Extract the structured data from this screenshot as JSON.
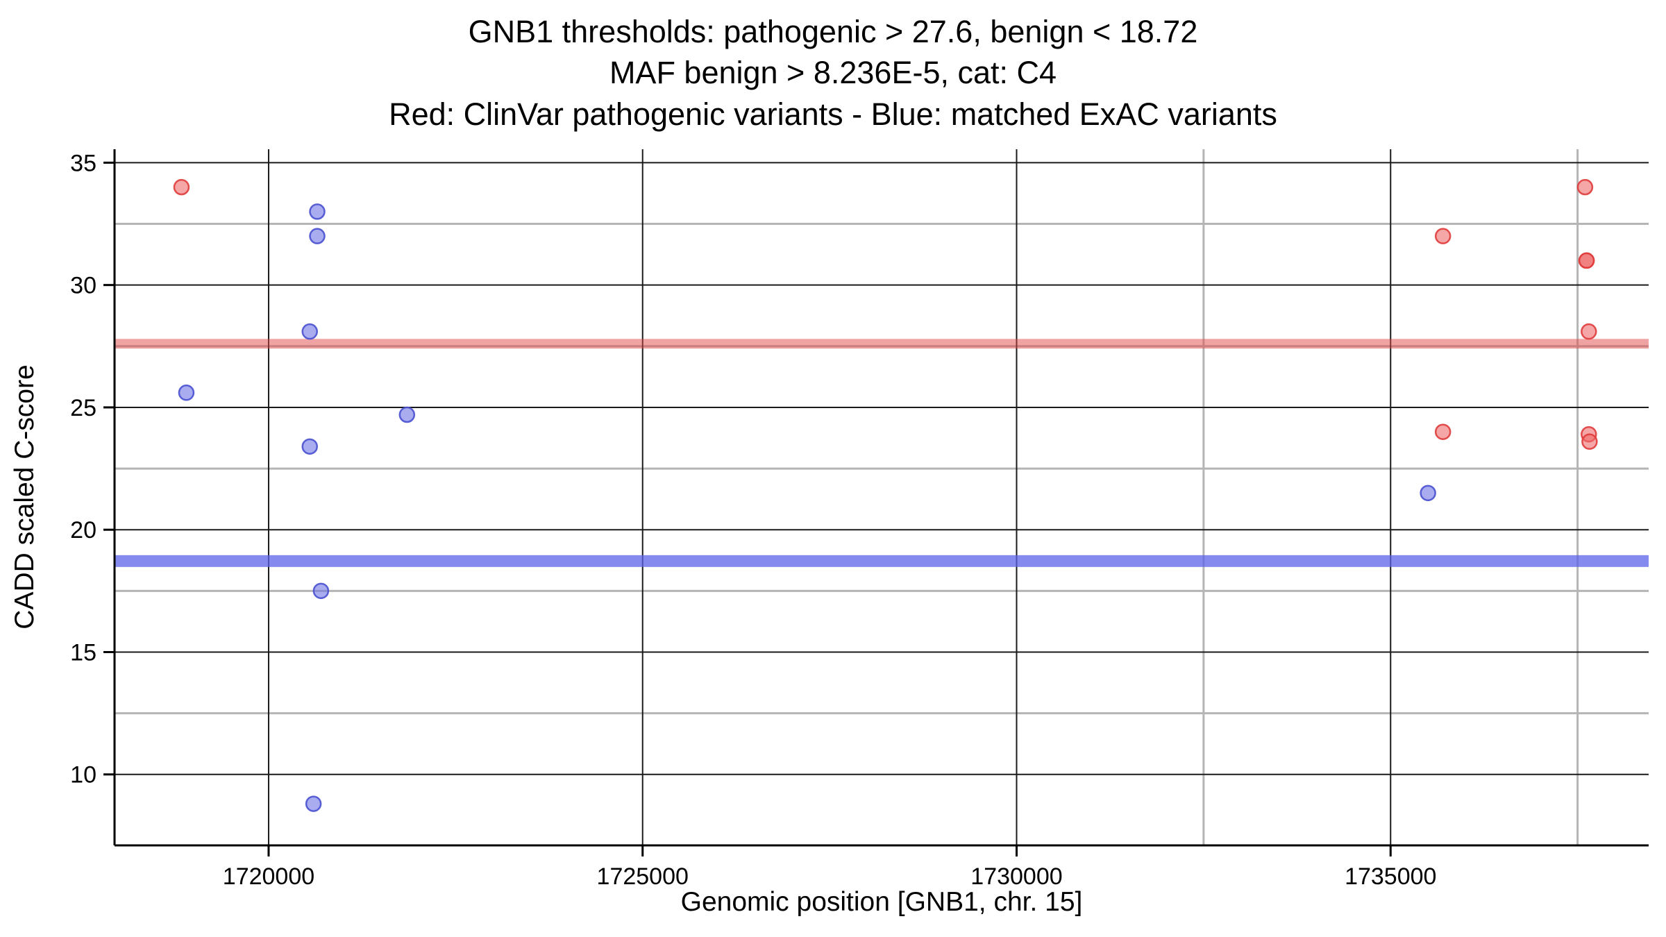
{
  "chart_data": {
    "type": "scatter",
    "title": "GNB1 thresholds: pathogenic > 27.6, benign < 18.72",
    "subtitle": "MAF benign > 8.236E-5, cat: C4",
    "legend_note": "Red: ClinVar pathogenic variants - Blue: matched ExAC variants",
    "xlabel": "Genomic position [GNB1, chr. 15]",
    "ylabel": "CADD scaled C-score",
    "xlim": [
      1717940,
      1738450
    ],
    "ylim": [
      7.1,
      35.55
    ],
    "x_ticks": [
      1720000,
      1725000,
      1730000,
      1735000
    ],
    "y_ticks": [
      10,
      15,
      20,
      25,
      30,
      35
    ],
    "x_minor_gridlines": [
      1732500,
      1737500
    ],
    "y_minor_gridlines": [
      12.5,
      17.5,
      22.5,
      27.5,
      32.5
    ],
    "grid": "on",
    "legend_position": "none",
    "thresholds": {
      "pathogenic": {
        "value": 27.6,
        "color": "#e04848",
        "opacity": 0.5,
        "label": "pathogenic > 27.6"
      },
      "benign": {
        "value": 18.72,
        "color": "#5b63e8",
        "opacity": 0.75,
        "label": "benign < 18.72"
      }
    },
    "series": [
      {
        "name": "ClinVar pathogenic variants",
        "color": "#ef6b6b",
        "stroke": "#e03c3c",
        "points": [
          [
            1718835,
            34.0
          ],
          [
            1735700,
            32.0
          ],
          [
            1737600,
            34.0
          ],
          [
            1737620,
            31.0
          ],
          [
            1737620,
            31.0
          ],
          [
            1737650,
            28.1
          ],
          [
            1735700,
            24.0
          ],
          [
            1737650,
            23.9
          ],
          [
            1737660,
            23.6
          ]
        ]
      },
      {
        "name": "matched ExAC variants",
        "color": "#7076e6",
        "stroke": "#4950cf",
        "points": [
          [
            1718900,
            25.6
          ],
          [
            1720650,
            33.0
          ],
          [
            1720650,
            32.0
          ],
          [
            1720550,
            28.1
          ],
          [
            1721850,
            24.7
          ],
          [
            1720550,
            23.4
          ],
          [
            1720700,
            17.5
          ],
          [
            1735500,
            21.5
          ],
          [
            1720600,
            8.8
          ]
        ]
      }
    ],
    "colors": {
      "major_grid": "#1a1a1a",
      "minor_grid": "#b5b5b5",
      "axis": "#000000"
    }
  }
}
